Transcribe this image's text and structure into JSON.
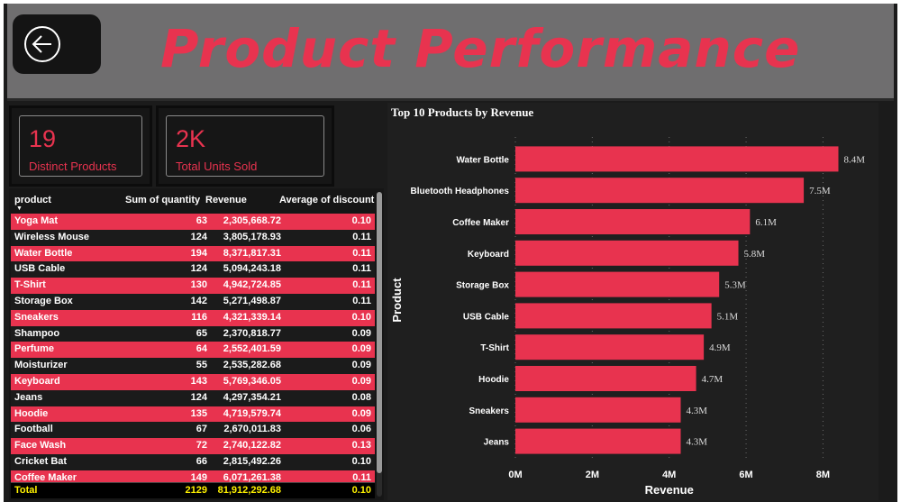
{
  "header": {
    "title": "Product Performance",
    "back_icon": "back-arrow-circle-icon"
  },
  "cards": [
    {
      "value": "19",
      "label": "Distinct Products"
    },
    {
      "value": "2K",
      "label": "Total Units Sold"
    }
  ],
  "table": {
    "columns": [
      "product",
      "Sum of quantity",
      "Revenue",
      "Average of discount"
    ],
    "rows": [
      [
        "Yoga Mat",
        "63",
        "2,305,668.72",
        "0.10"
      ],
      [
        "Wireless Mouse",
        "124",
        "3,805,178.93",
        "0.11"
      ],
      [
        "Water Bottle",
        "194",
        "8,371,817.31",
        "0.11"
      ],
      [
        "USB Cable",
        "124",
        "5,094,243.18",
        "0.11"
      ],
      [
        "T-Shirt",
        "130",
        "4,942,724.85",
        "0.11"
      ],
      [
        "Storage Box",
        "142",
        "5,271,498.87",
        "0.11"
      ],
      [
        "Sneakers",
        "116",
        "4,321,339.14",
        "0.10"
      ],
      [
        "Shampoo",
        "65",
        "2,370,818.77",
        "0.09"
      ],
      [
        "Perfume",
        "64",
        "2,552,401.59",
        "0.09"
      ],
      [
        "Moisturizer",
        "55",
        "2,535,282.68",
        "0.09"
      ],
      [
        "Keyboard",
        "143",
        "5,769,346.05",
        "0.09"
      ],
      [
        "Jeans",
        "124",
        "4,297,354.21",
        "0.08"
      ],
      [
        "Hoodie",
        "135",
        "4,719,579.74",
        "0.09"
      ],
      [
        "Football",
        "67",
        "2,670,011.83",
        "0.06"
      ],
      [
        "Face Wash",
        "72",
        "2,740,122.82",
        "0.13"
      ],
      [
        "Cricket Bat",
        "66",
        "2,815,492.26",
        "0.10"
      ],
      [
        "Coffee Maker",
        "149",
        "6,071,261.38",
        "0.11"
      ]
    ],
    "total": [
      "Total",
      "2129",
      "81,912,292.68",
      "0.10"
    ]
  },
  "colors": {
    "accent": "#e8334f",
    "total_text": "#fff200",
    "background": "#1b1b1b",
    "header_bg": "#6f6e6f"
  },
  "chart_data": {
    "type": "bar",
    "orientation": "horizontal",
    "title": "Top 10 Products by Revenue",
    "xlabel": "Revenue",
    "ylabel": "Product",
    "categories": [
      "Water Bottle",
      "Bluetooth Headphones",
      "Coffee Maker",
      "Keyboard",
      "Storage Box",
      "USB Cable",
      "T-Shirt",
      "Hoodie",
      "Sneakers",
      "Jeans"
    ],
    "values": [
      8.4,
      7.5,
      6.1,
      5.8,
      5.3,
      5.1,
      4.9,
      4.7,
      4.3,
      4.3
    ],
    "data_labels": [
      "8.4M",
      "7.5M",
      "6.1M",
      "5.8M",
      "5.3M",
      "5.1M",
      "4.9M",
      "4.7M",
      "4.3M",
      "4.3M"
    ],
    "value_unit": "M",
    "xticks": [
      0,
      2,
      4,
      6,
      8
    ],
    "xtick_labels": [
      "0M",
      "2M",
      "4M",
      "6M",
      "8M"
    ],
    "xlim": [
      0,
      8.4
    ],
    "grid": "vertical-dotted",
    "bar_color": "#e8334f"
  }
}
